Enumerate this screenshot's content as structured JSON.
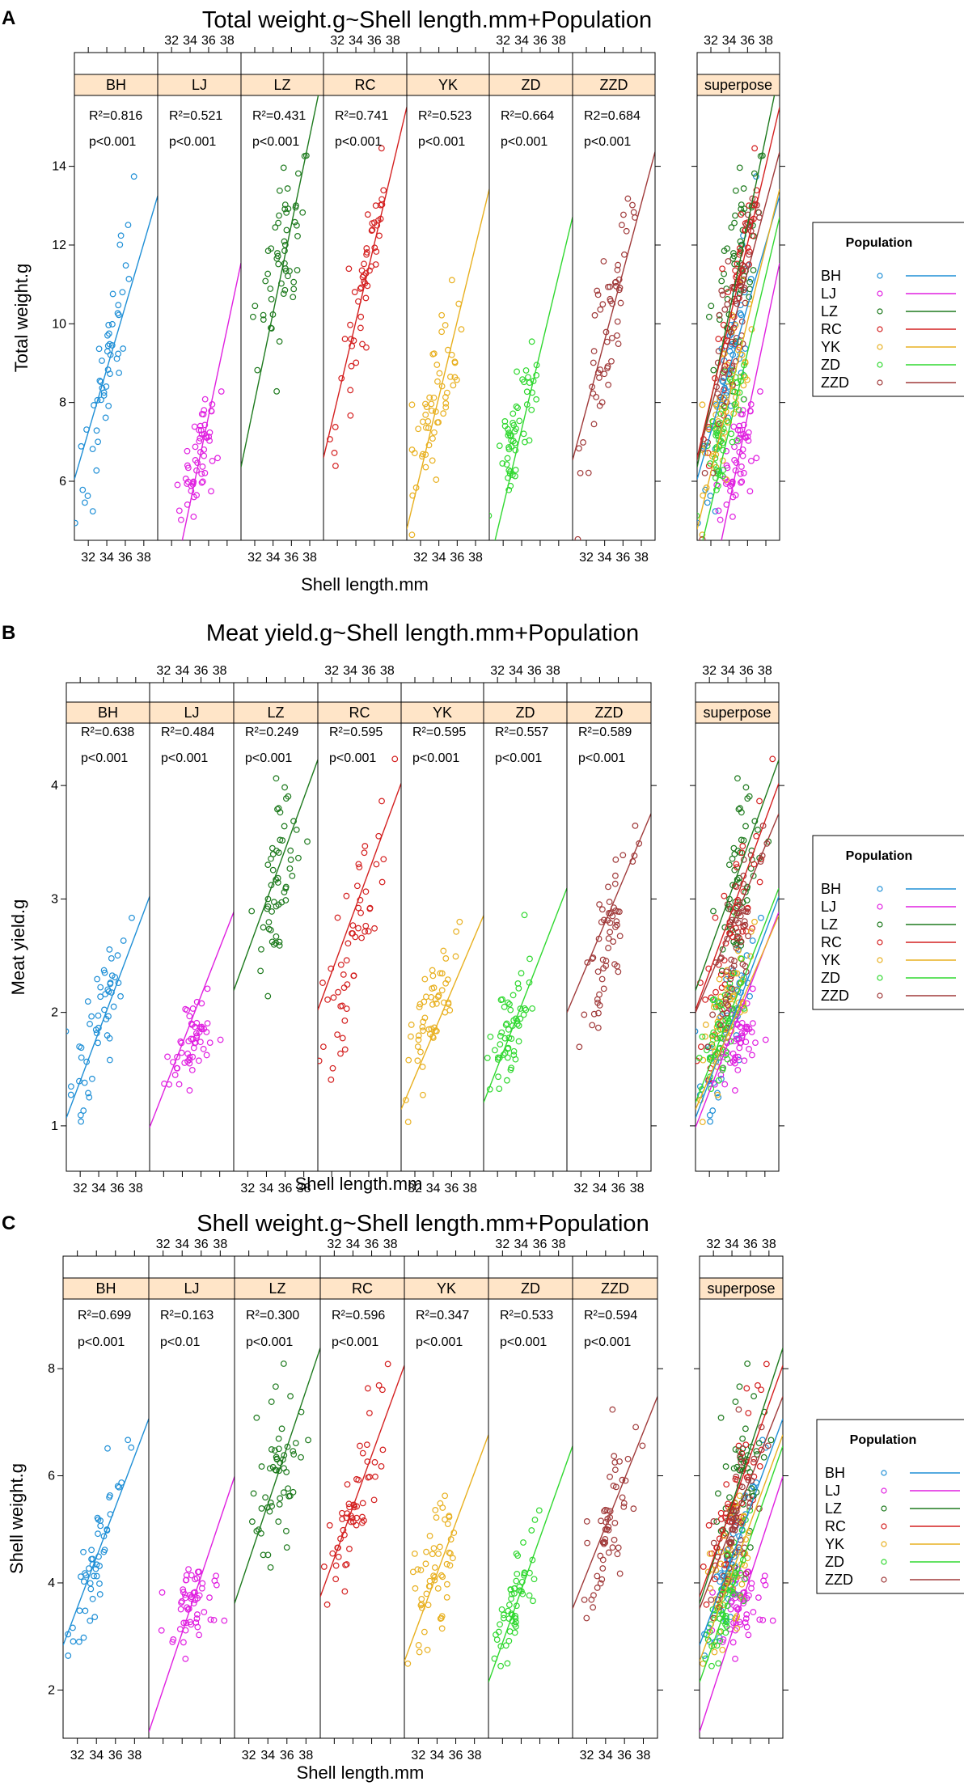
{
  "panels": [
    {
      "letter": "A",
      "title": "Total weight.g~Shell length.mm+Population",
      "ylabel": "Total weight.g",
      "xlabel": "Shell length.mm",
      "legend_title": "Population",
      "superpose_label": "superpose",
      "x_ticks": [
        "32",
        "34",
        "36",
        "38"
      ],
      "y_ticks": [
        6,
        8,
        10,
        12,
        14
      ],
      "ylim": [
        4.5,
        15.8
      ]
    },
    {
      "letter": "B",
      "title": "Meat yield.g~Shell length.mm+Population",
      "ylabel": "Meat yield.g",
      "xlabel": "Shell length.mm",
      "legend_title": "Population",
      "superpose_label": "superpose",
      "x_ticks": [
        "32",
        "34",
        "36",
        "38"
      ],
      "y_ticks": [
        1,
        2,
        3,
        4
      ],
      "ylim": [
        0.6,
        4.55
      ]
    },
    {
      "letter": "C",
      "title": "Shell weight.g~Shell length.mm+Population",
      "ylabel": "Shell weight.g",
      "xlabel": "Shell length.mm",
      "legend_title": "Population",
      "superpose_label": "superpose",
      "x_ticks": [
        "32",
        "34",
        "36",
        "38"
      ],
      "y_ticks": [
        2,
        4,
        6,
        8
      ],
      "ylim": [
        1.1,
        9.3
      ]
    }
  ],
  "chart_data": [
    {
      "type": "scatter",
      "title": "Total weight.g~Shell length.mm+Population",
      "xlabel": "Shell length.mm",
      "ylabel": "Total weight.g",
      "xlim": [
        30.5,
        39.5
      ],
      "ylim": [
        4.5,
        15.8
      ],
      "groups": [
        {
          "name": "BH",
          "r2_label": "R²=0.816",
          "p_label": "p<0.001",
          "color": "#1f8fd6",
          "intercept": -18.35,
          "slope": 0.8,
          "mean_x": 34.0,
          "sd_x": 1.6,
          "mean_y": 8.8,
          "sd_y": 2.0,
          "n": 50
        },
        {
          "name": "LJ",
          "r2_label": "R²=0.521",
          "p_label": "p<0.001",
          "color": "#e020e0",
          "intercept": -32.3,
          "slope": 1.11,
          "mean_x": 35.0,
          "sd_x": 1.2,
          "mean_y": 6.55,
          "sd_y": 0.75,
          "n": 55
        },
        {
          "name": "LZ",
          "r2_label": "R²=0.431",
          "p_label": "p<0.001",
          "color": "#1e7a1e",
          "intercept": -27.8,
          "slope": 1.12,
          "mean_x": 35.0,
          "sd_x": 1.3,
          "mean_y": 11.4,
          "sd_y": 1.5,
          "n": 55
        },
        {
          "name": "RC",
          "r2_label": "R²=0.741",
          "p_label": "p<0.001",
          "color": "#d42020",
          "intercept": -23.6,
          "slope": 0.99,
          "mean_x": 34.5,
          "sd_x": 1.5,
          "mean_y": 10.4,
          "sd_y": 1.8,
          "n": 55
        },
        {
          "name": "YK",
          "r2_label": "R²=0.523",
          "p_label": "p<0.001",
          "color": "#e8b020",
          "intercept": -24.5,
          "slope": 0.96,
          "mean_x": 33.5,
          "sd_x": 1.3,
          "mean_y": 8.0,
          "sd_y": 1.2,
          "n": 55
        },
        {
          "name": "ZD",
          "r2_label": "R²=0.664",
          "p_label": "p<0.001",
          "color": "#30d830",
          "intercept": -26.0,
          "slope": 0.98,
          "mean_x": 33.5,
          "sd_x": 1.2,
          "mean_y": 7.3,
          "sd_y": 1.2,
          "n": 55
        },
        {
          "name": "ZZD",
          "r2_label": "R2=0.684",
          "p_label": "p<0.001",
          "color": "#a03a3a",
          "intercept": -20.0,
          "slope": 0.87,
          "mean_x": 34.5,
          "sd_x": 1.5,
          "mean_y": 10.0,
          "sd_y": 1.9,
          "n": 55
        }
      ]
    },
    {
      "type": "scatter",
      "title": "Meat yield.g~Shell length.mm+Population",
      "xlabel": "Shell length.mm",
      "ylabel": "Meat yield.g",
      "xlim": [
        30.5,
        39.5
      ],
      "ylim": [
        0.6,
        4.55
      ],
      "groups": [
        {
          "name": "BH",
          "r2_label": "R²=0.638",
          "p_label": "p<0.001",
          "color": "#1f8fd6",
          "intercept": -5.55,
          "slope": 0.217,
          "mean_x": 34.0,
          "sd_x": 1.6,
          "mean_y": 1.85,
          "sd_y": 0.42,
          "n": 50
        },
        {
          "name": "LJ",
          "r2_label": "R²=0.484",
          "p_label": "p<0.001",
          "color": "#e020e0",
          "intercept": -5.45,
          "slope": 0.211,
          "mean_x": 35.0,
          "sd_x": 1.2,
          "mean_y": 1.7,
          "sd_y": 0.22,
          "n": 55
        },
        {
          "name": "LZ",
          "r2_label": "R²=0.249",
          "p_label": "p<0.001",
          "color": "#1e7a1e",
          "intercept": -4.7,
          "slope": 0.226,
          "mean_x": 35.0,
          "sd_x": 1.3,
          "mean_y": 3.05,
          "sd_y": 0.45,
          "n": 55
        },
        {
          "name": "RC",
          "r2_label": "R²=0.595",
          "p_label": "p<0.001",
          "color": "#d42020",
          "intercept": -4.75,
          "slope": 0.222,
          "mean_x": 34.5,
          "sd_x": 1.5,
          "mean_y": 2.6,
          "sd_y": 0.55,
          "n": 55
        },
        {
          "name": "YK",
          "r2_label": "R²=0.595",
          "p_label": "p<0.001",
          "color": "#e8b020",
          "intercept": -4.65,
          "slope": 0.19,
          "mean_x": 33.5,
          "sd_x": 1.3,
          "mean_y": 1.95,
          "sd_y": 0.32,
          "n": 55
        },
        {
          "name": "ZD",
          "r2_label": "R²=0.557",
          "p_label": "p<0.001",
          "color": "#30d830",
          "intercept": -5.2,
          "slope": 0.21,
          "mean_x": 33.5,
          "sd_x": 1.2,
          "mean_y": 1.85,
          "sd_y": 0.32,
          "n": 55
        },
        {
          "name": "ZZD",
          "r2_label": "R²=0.589",
          "p_label": "p<0.001",
          "color": "#a03a3a",
          "intercept": -3.95,
          "slope": 0.195,
          "mean_x": 34.5,
          "sd_x": 1.5,
          "mean_y": 2.55,
          "sd_y": 0.45,
          "n": 55
        }
      ]
    },
    {
      "type": "scatter",
      "title": "Shell weight.g~Shell length.mm+Population",
      "xlabel": "Shell length.mm",
      "ylabel": "Shell weight.g",
      "xlim": [
        30.5,
        39.5
      ],
      "ylim": [
        1.1,
        9.3
      ],
      "groups": [
        {
          "name": "BH",
          "r2_label": "R²=0.699",
          "p_label": "p<0.001",
          "color": "#1f8fd6",
          "intercept": -11.5,
          "slope": 0.47,
          "mean_x": 34.0,
          "sd_x": 1.6,
          "mean_y": 4.5,
          "sd_y": 1.0,
          "n": 50
        },
        {
          "name": "LJ",
          "r2_label": "R²=0.163",
          "p_label": "p<0.01",
          "color": "#e020e0",
          "intercept": -14.95,
          "slope": 0.53,
          "mean_x": 35.0,
          "sd_x": 1.2,
          "mean_y": 3.5,
          "sd_y": 0.45,
          "n": 55
        },
        {
          "name": "LZ",
          "r2_label": "R²=0.300",
          "p_label": "p<0.001",
          "color": "#1e7a1e",
          "intercept": -12.55,
          "slope": 0.53,
          "mean_x": 35.0,
          "sd_x": 1.3,
          "mean_y": 6.0,
          "sd_y": 0.9,
          "n": 55
        },
        {
          "name": "RC",
          "r2_label": "R²=0.596",
          "p_label": "p<0.001",
          "color": "#d42020",
          "intercept": -10.9,
          "slope": 0.48,
          "mean_x": 34.5,
          "sd_x": 1.5,
          "mean_y": 5.6,
          "sd_y": 0.9,
          "n": 55
        },
        {
          "name": "YK",
          "r2_label": "R²=0.347",
          "p_label": "p<0.001",
          "color": "#e8b020",
          "intercept": -11.8,
          "slope": 0.47,
          "mean_x": 33.5,
          "sd_x": 1.3,
          "mean_y": 4.0,
          "sd_y": 0.75,
          "n": 55
        },
        {
          "name": "ZD",
          "r2_label": "R²=0.533",
          "p_label": "p<0.001",
          "color": "#30d830",
          "intercept": -12.8,
          "slope": 0.49,
          "mean_x": 33.5,
          "sd_x": 1.2,
          "mean_y": 3.7,
          "sd_y": 0.6,
          "n": 55
        },
        {
          "name": "ZZD",
          "r2_label": "R²=0.594",
          "p_label": "p<0.001",
          "color": "#a03a3a",
          "intercept": -9.9,
          "slope": 0.44,
          "mean_x": 34.5,
          "sd_x": 1.5,
          "mean_y": 5.1,
          "sd_y": 1.0,
          "n": 55
        }
      ]
    }
  ]
}
